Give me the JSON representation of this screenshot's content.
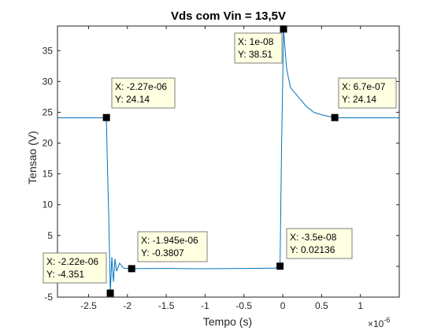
{
  "colors": {
    "series": "#0072bd",
    "axis": "#262626",
    "tip_bg": "#ffffe1",
    "tip_border": "#7f7f7f"
  },
  "chart_data": {
    "type": "line",
    "title": "Vds com Vin = 13,5V",
    "xlabel": "Tempo (s)",
    "ylabel": "Tensao (V)",
    "x_exponent_base": "×10",
    "x_exponent_power": "-6",
    "xlim": [
      -2.9e-06,
      1.5e-06
    ],
    "ylim": [
      -5,
      39
    ],
    "x_ticks": [
      {
        "value": -2.5e-06,
        "label": "-2.5"
      },
      {
        "value": -2e-06,
        "label": "-2"
      },
      {
        "value": -1.5e-06,
        "label": "-1.5"
      },
      {
        "value": -1e-06,
        "label": "-1"
      },
      {
        "value": -5e-07,
        "label": "-0.5"
      },
      {
        "value": 0,
        "label": "0"
      },
      {
        "value": 5e-07,
        "label": "0.5"
      },
      {
        "value": 1e-06,
        "label": "1"
      }
    ],
    "y_ticks": [
      {
        "value": -5,
        "label": "-5"
      },
      {
        "value": 0,
        "label": "0"
      },
      {
        "value": 5,
        "label": "5"
      },
      {
        "value": 10,
        "label": "10"
      },
      {
        "value": 15,
        "label": "15"
      },
      {
        "value": 20,
        "label": "20"
      },
      {
        "value": 25,
        "label": "25"
      },
      {
        "value": 30,
        "label": "30"
      },
      {
        "value": 35,
        "label": "35"
      }
    ],
    "series": [
      {
        "x": [
          -2.9e-06,
          -2.5e-06,
          -2.3e-06,
          -2.27e-06,
          -2.26e-06,
          -2.24e-06,
          -2.22e-06,
          -2.2e-06,
          -2.18e-06,
          -2.16e-06,
          -2.14e-06,
          -2.1e-06,
          -2.05e-06,
          -1.945e-06,
          -1.5e-06,
          -1e-06,
          -5e-07,
          -1e-07,
          -3.5e-08,
          -1.5e-08,
          0,
          1e-08,
          5e-08,
          1e-07,
          2e-07,
          3e-07,
          4e-07,
          5e-07,
          6e-07,
          6.7e-07,
          8e-07,
          1e-06,
          1.2e-06,
          1.5e-06
        ],
        "y": [
          24.1,
          24.1,
          24.1,
          24.14,
          18,
          8,
          -4.351,
          1.5,
          -2.5,
          1.2,
          -0.8,
          0.5,
          -0.3,
          -0.3807,
          -0.35,
          -0.4,
          -0.35,
          -0.3,
          0.02136,
          20,
          30,
          38.51,
          32,
          29,
          27.5,
          26,
          25,
          24.6,
          24.3,
          24.14,
          24.1,
          24.1,
          24.1,
          24.1
        ]
      }
    ],
    "annotations": [
      {
        "x": -2.27e-06,
        "y": 24.14,
        "x_text": "X: -2.27e-06",
        "y_text": "Y: 24.14"
      },
      {
        "x": -2.22e-06,
        "y": -4.351,
        "x_text": "X: -2.22e-06",
        "y_text": "Y: -4.351"
      },
      {
        "x": -1.945e-06,
        "y": -0.3807,
        "x_text": "X: -1.945e-06",
        "y_text": "Y: -0.3807"
      },
      {
        "x": 1e-08,
        "y": 38.51,
        "x_text": "X: 1e-08",
        "y_text": "Y: 38.51"
      },
      {
        "x": -3.5e-08,
        "y": 0.02136,
        "x_text": "X: -3.5e-08",
        "y_text": "Y: 0.02136"
      },
      {
        "x": 6.7e-07,
        "y": 24.14,
        "x_text": "X: 6.7e-07",
        "y_text": "Y: 24.14"
      }
    ],
    "grid": false,
    "legend": "none"
  }
}
